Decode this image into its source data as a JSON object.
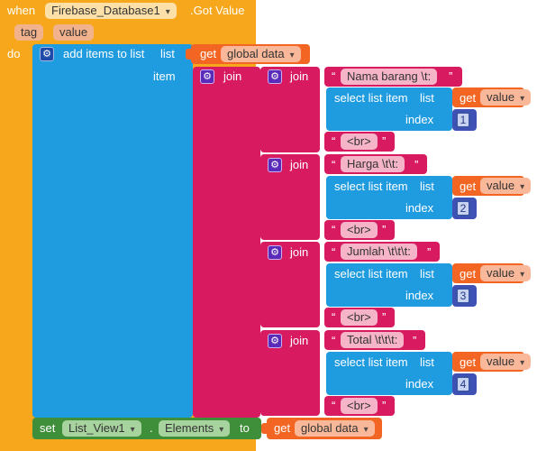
{
  "event": {
    "when": "when",
    "component": "Firebase_Database1",
    "event_name": ".Got Value",
    "param_tag": "tag",
    "param_value": "value",
    "do": "do"
  },
  "add_items": {
    "label": "add items to list",
    "list_label": "list",
    "item_label": "item",
    "get_label": "get",
    "get_var": "global data"
  },
  "join_label": "join",
  "open_quote": "“",
  "close_quote": "”",
  "rows": [
    {
      "text": "Nama barang \\t:",
      "select": "select list item",
      "list_label": "list",
      "get": "get",
      "var": "value",
      "index_label": "index",
      "index": "1",
      "br": "<br>"
    },
    {
      "text": "Harga \\t\\t:",
      "select": "select list item",
      "list_label": "list",
      "get": "get",
      "var": "value",
      "index_label": "index",
      "index": "2",
      "br": "<br>"
    },
    {
      "text": "Jumlah \\t\\t\\t:",
      "select": "select list item",
      "list_label": "list",
      "get": "get",
      "var": "value",
      "index_label": "index",
      "index": "3",
      "br": "<br>"
    },
    {
      "text": "Total \\t\\t\\t:",
      "select": "select list item",
      "list_label": "list",
      "get": "get",
      "var": "value",
      "index_label": "index",
      "index": "4",
      "br": "<br>"
    }
  ],
  "set_block": {
    "set": "set",
    "component": "List_View1",
    "dot": ".",
    "property": "Elements",
    "to": "to",
    "get": "get",
    "var": "global data"
  },
  "colors": {
    "event": "#f7a71c",
    "list": "#1f9be0",
    "text": "#d81b60",
    "variable": "#f26522",
    "math": "#3f51b5",
    "component": "#3f8f3a"
  }
}
